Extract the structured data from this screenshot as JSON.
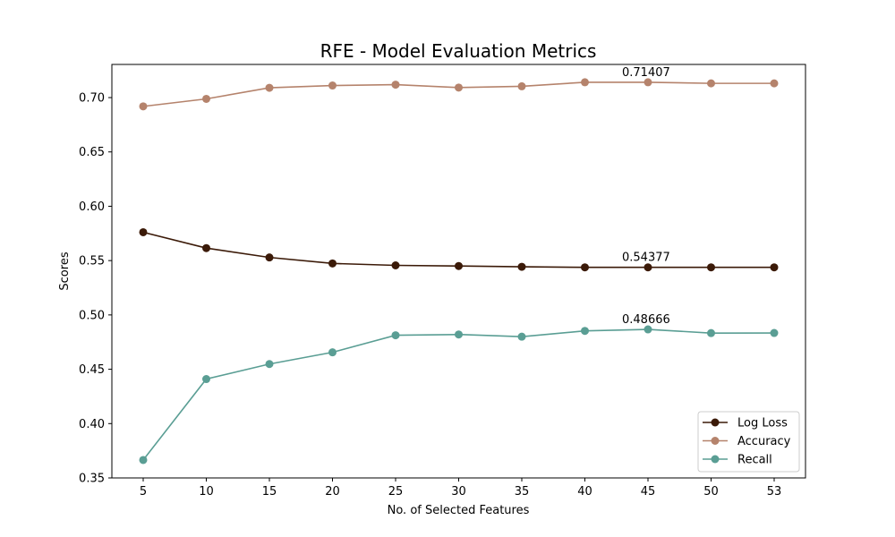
{
  "chart_data": {
    "type": "line",
    "title": "RFE - Model Evaluation Metrics",
    "xlabel": "No. of Selected Features",
    "ylabel": "Scores",
    "x": [
      5,
      10,
      15,
      20,
      25,
      30,
      35,
      40,
      45,
      50,
      53
    ],
    "x_tick_labels": [
      "5",
      "10",
      "15",
      "20",
      "25",
      "30",
      "35",
      "40",
      "45",
      "50",
      "53"
    ],
    "ylim": [
      0.35,
      0.7305
    ],
    "y_ticks": [
      0.35,
      0.4,
      0.45,
      0.5,
      0.55,
      0.6,
      0.65,
      0.7
    ],
    "y_tick_labels": [
      "0.35",
      "0.40",
      "0.45",
      "0.50",
      "0.55",
      "0.60",
      "0.65",
      "0.70"
    ],
    "grid": false,
    "legend_position": "lower-right",
    "series": [
      {
        "name": "Log Loss",
        "color": "#3b1a08",
        "values": [
          0.5761,
          0.5615,
          0.5529,
          0.5474,
          0.5456,
          0.545,
          0.5443,
          0.5438,
          0.5438,
          0.5438,
          0.5438
        ]
      },
      {
        "name": "Accuracy",
        "color": "#b5836c",
        "values": [
          0.6919,
          0.6988,
          0.709,
          0.7111,
          0.7119,
          0.7092,
          0.7104,
          0.7141,
          0.7141,
          0.7131,
          0.7131
        ]
      },
      {
        "name": "Recall",
        "color": "#5a9e94",
        "values": [
          0.3665,
          0.441,
          0.4548,
          0.4656,
          0.4813,
          0.482,
          0.48,
          0.4853,
          0.4867,
          0.4833,
          0.4834
        ]
      }
    ],
    "annotations": [
      {
        "text": "0.71407",
        "x": 45,
        "y": 0.71407
      },
      {
        "text": "0.54377",
        "x": 45,
        "y": 0.54377
      },
      {
        "text": "0.48666",
        "x": 45,
        "y": 0.48666
      }
    ]
  }
}
